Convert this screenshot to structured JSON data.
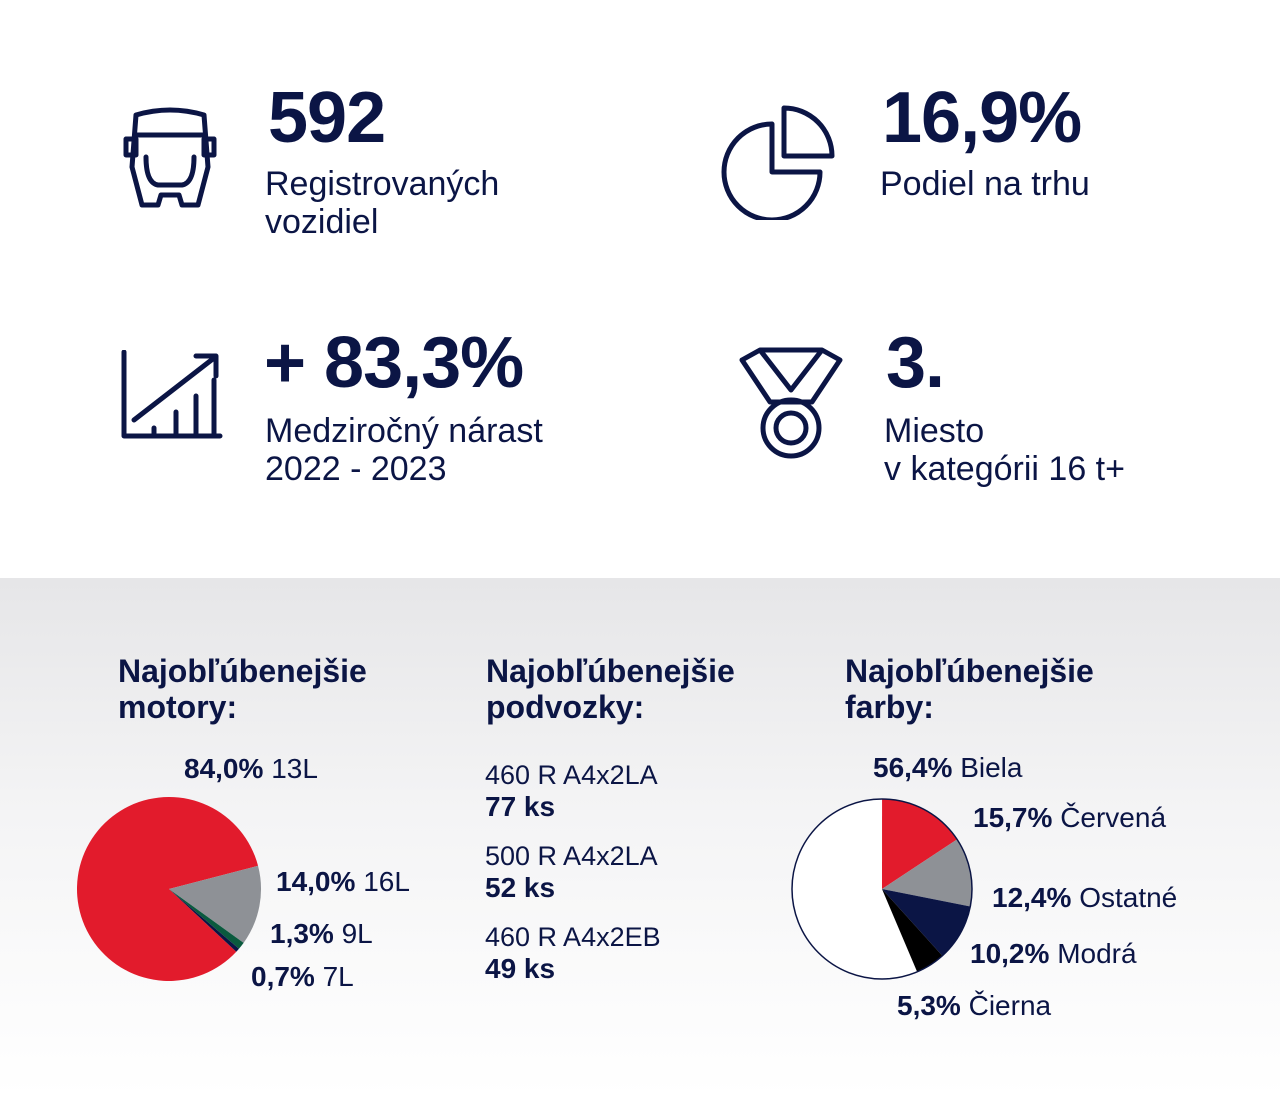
{
  "stats": {
    "registrations": {
      "value": "592",
      "label_line1": "Registrovaných",
      "label_line2": "vozidiel",
      "icon": "truck-front-icon"
    },
    "market_share": {
      "value": "16,9%",
      "label_line1": "Podiel na trhu",
      "icon": "pie-chart-icon"
    },
    "growth": {
      "value": "+ 83,3%",
      "label_line1": "Medziročný nárast",
      "label_line2": "2022 - 2023",
      "icon": "growth-chart-icon"
    },
    "rank": {
      "value": "3.",
      "label_line1": "Miesto",
      "label_line2": "v kategórii 16 t+",
      "icon": "medal-icon"
    }
  },
  "engines": {
    "title_line1": "Najobľúbenejšie",
    "title_line2": "motory:"
  },
  "chassis": {
    "title_line1": "Najobľúbenejšie",
    "title_line2": "podvozky:",
    "items": [
      {
        "name": "460 R A4x2LA",
        "count": "77 ks"
      },
      {
        "name": "500 R A4x2LA",
        "count": "52 ks"
      },
      {
        "name": "460 R A4x2EB",
        "count": "49 ks"
      }
    ]
  },
  "colors_section": {
    "title_line1": "Najobľúbenejšie",
    "title_line2": "farby:"
  },
  "chart_data": [
    {
      "type": "pie",
      "title": "Najobľúbenejšie motory:",
      "slices": [
        {
          "label": "13L",
          "value": 84.0,
          "value_text": "84,0%",
          "color": "#e21b2c"
        },
        {
          "label": "16L",
          "value": 14.0,
          "value_text": "14,0%",
          "color": "#8e9196"
        },
        {
          "label": "9L",
          "value": 1.3,
          "value_text": "1,3%",
          "color": "#0a5a3e"
        },
        {
          "label": "7L",
          "value": 0.7,
          "value_text": "0,7%",
          "color": "#0b1545"
        }
      ]
    },
    {
      "type": "pie",
      "title": "Najobľúbenejšie farby:",
      "slices": [
        {
          "label": "Biela",
          "value": 56.4,
          "value_text": "56,4%",
          "color": "#ffffff"
        },
        {
          "label": "Červená",
          "value": 15.7,
          "value_text": "15,7%",
          "color": "#e21b2c"
        },
        {
          "label": "Ostatné",
          "value": 12.4,
          "value_text": "12,4%",
          "color": "#8e9196"
        },
        {
          "label": "Modrá",
          "value": 10.2,
          "value_text": "10,2%",
          "color": "#0b1545"
        },
        {
          "label": "Čierna",
          "value": 5.3,
          "value_text": "5,3%",
          "color": "#000000"
        }
      ]
    }
  ]
}
